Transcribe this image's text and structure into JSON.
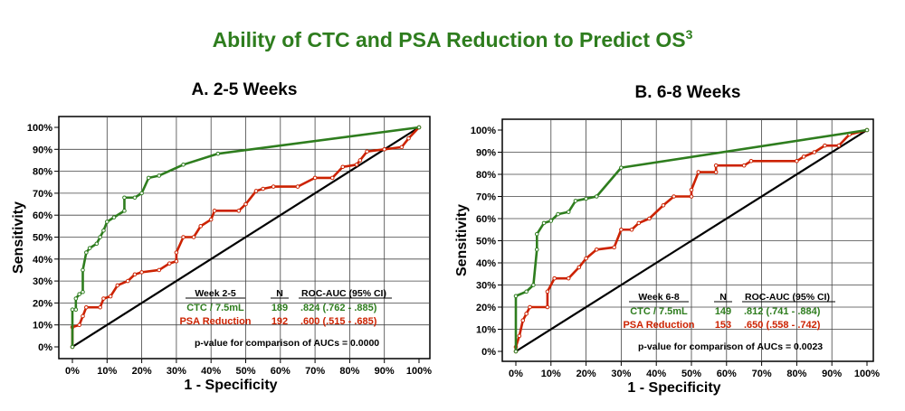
{
  "title": "Ability of CTC and PSA Reduction to Predict OS",
  "title_superscript": "3",
  "colors": {
    "ctc": "#2e7d1e",
    "psa": "#cc2200",
    "title": "#2e7d1e"
  },
  "chart_data": [
    {
      "type": "line",
      "title": "A. 2-5 Weeks",
      "xlabel": "1 - Specificity",
      "ylabel": "Sensitivity",
      "xlim": [
        0,
        100
      ],
      "ylim": [
        0,
        100
      ],
      "xticks": [
        "0%",
        "10%",
        "20%",
        "30%",
        "40%",
        "50%",
        "60%",
        "70%",
        "80%",
        "90%",
        "100%"
      ],
      "yticks": [
        "0%",
        "10%",
        "20%",
        "30%",
        "40%",
        "50%",
        "60%",
        "70%",
        "80%",
        "90%",
        "100%"
      ],
      "grid": true,
      "series": [
        {
          "name": "CTC / 7.5mL",
          "color": "#2e7d1e",
          "points": [
            [
              0,
              0
            ],
            [
              0,
              17
            ],
            [
              1,
              17
            ],
            [
              1,
              22
            ],
            [
              2,
              24
            ],
            [
              3,
              25
            ],
            [
              3,
              35
            ],
            [
              4,
              43
            ],
            [
              5,
              45
            ],
            [
              7,
              47
            ],
            [
              8,
              50
            ],
            [
              9,
              53
            ],
            [
              10,
              57
            ],
            [
              12,
              59
            ],
            [
              15,
              62
            ],
            [
              15,
              68
            ],
            [
              18,
              68
            ],
            [
              20,
              70
            ],
            [
              22,
              77
            ],
            [
              25,
              78
            ],
            [
              32,
              83
            ],
            [
              42,
              88
            ],
            [
              100,
              100
            ]
          ]
        },
        {
          "name": "PSA Reduction",
          "color": "#cc2200",
          "points": [
            [
              0,
              0
            ],
            [
              0,
              9
            ],
            [
              2,
              10
            ],
            [
              3,
              14
            ],
            [
              4,
              18
            ],
            [
              8,
              18
            ],
            [
              9,
              22
            ],
            [
              11,
              23
            ],
            [
              13,
              28
            ],
            [
              16,
              30
            ],
            [
              18,
              33
            ],
            [
              20,
              34
            ],
            [
              25,
              35
            ],
            [
              28,
              38
            ],
            [
              30,
              39
            ],
            [
              30,
              43
            ],
            [
              32,
              50
            ],
            [
              35,
              50
            ],
            [
              37,
              55
            ],
            [
              40,
              58
            ],
            [
              41,
              62
            ],
            [
              48,
              62
            ],
            [
              50,
              65
            ],
            [
              53,
              71
            ],
            [
              55,
              72
            ],
            [
              58,
              73
            ],
            [
              65,
              73
            ],
            [
              70,
              77
            ],
            [
              75,
              77
            ],
            [
              78,
              82
            ],
            [
              82,
              83
            ],
            [
              83,
              85
            ],
            [
              85,
              89
            ],
            [
              90,
              90
            ],
            [
              95,
              91
            ],
            [
              97,
              95
            ],
            [
              100,
              100
            ]
          ]
        },
        {
          "name": "reference",
          "color": "#000000",
          "points": [
            [
              0,
              0
            ],
            [
              100,
              100
            ]
          ]
        }
      ],
      "table": {
        "headers": [
          "Week 2-5",
          "N",
          "ROC-AUC (95% CI)"
        ],
        "rows": [
          {
            "label": "CTC / 7.5mL",
            "n": "189",
            "auc": ".824  (.762 - .885)"
          },
          {
            "label": "PSA Reduction",
            "n": "192",
            "auc": ".600  (.515 - .685)"
          }
        ],
        "pvalue": "p-value for comparison of AUCs = 0.0000"
      }
    },
    {
      "type": "line",
      "title": "B. 6-8 Weeks",
      "xlabel": "1 - Specificity",
      "ylabel": "Sensitivity",
      "xlim": [
        0,
        100
      ],
      "ylim": [
        0,
        100
      ],
      "xticks": [
        "0%",
        "10%",
        "20%",
        "30%",
        "40%",
        "50%",
        "60%",
        "70%",
        "80%",
        "90%",
        "100%"
      ],
      "yticks": [
        "0%",
        "10%",
        "20%",
        "30%",
        "40%",
        "50%",
        "60%",
        "70%",
        "80%",
        "90%",
        "100%"
      ],
      "grid": true,
      "series": [
        {
          "name": "CTC / 7.5mL",
          "color": "#2e7d1e",
          "points": [
            [
              0,
              0
            ],
            [
              0,
              25
            ],
            [
              3,
              27
            ],
            [
              5,
              30
            ],
            [
              6,
              46
            ],
            [
              6,
              53
            ],
            [
              8,
              58
            ],
            [
              10,
              59
            ],
            [
              12,
              62
            ],
            [
              15,
              63
            ],
            [
              17,
              68
            ],
            [
              20,
              69
            ],
            [
              23,
              70
            ],
            [
              30,
              83
            ],
            [
              100,
              100
            ]
          ]
        },
        {
          "name": "PSA Reduction",
          "color": "#cc2200",
          "points": [
            [
              0,
              0
            ],
            [
              0,
              2
            ],
            [
              1,
              7
            ],
            [
              2,
              14
            ],
            [
              3,
              17
            ],
            [
              4,
              20
            ],
            [
              9,
              20
            ],
            [
              9,
              27
            ],
            [
              11,
              33
            ],
            [
              15,
              33
            ],
            [
              18,
              38
            ],
            [
              20,
              42
            ],
            [
              23,
              46
            ],
            [
              28,
              47
            ],
            [
              30,
              55
            ],
            [
              33,
              55
            ],
            [
              35,
              58
            ],
            [
              38,
              60
            ],
            [
              42,
              66
            ],
            [
              45,
              70
            ],
            [
              50,
              70
            ],
            [
              50,
              73
            ],
            [
              52,
              81
            ],
            [
              57,
              81
            ],
            [
              57,
              84
            ],
            [
              65,
              84
            ],
            [
              67,
              86
            ],
            [
              80,
              86
            ],
            [
              82,
              88
            ],
            [
              85,
              90
            ],
            [
              88,
              93
            ],
            [
              92,
              93
            ],
            [
              95,
              98
            ],
            [
              100,
              100
            ]
          ]
        },
        {
          "name": "reference",
          "color": "#000000",
          "points": [
            [
              0,
              0
            ],
            [
              100,
              100
            ]
          ]
        }
      ],
      "table": {
        "headers": [
          "Week 6-8",
          "N",
          "ROC-AUC (95% CI)"
        ],
        "rows": [
          {
            "label": "CTC / 7.5mL",
            "n": "149",
            "auc": ".812  (.741 - .884)"
          },
          {
            "label": "PSA Reduction",
            "n": "153",
            "auc": ".650  (.558 - .742)"
          }
        ],
        "pvalue": "p-value for comparison of AUCs = 0.0023"
      }
    }
  ]
}
